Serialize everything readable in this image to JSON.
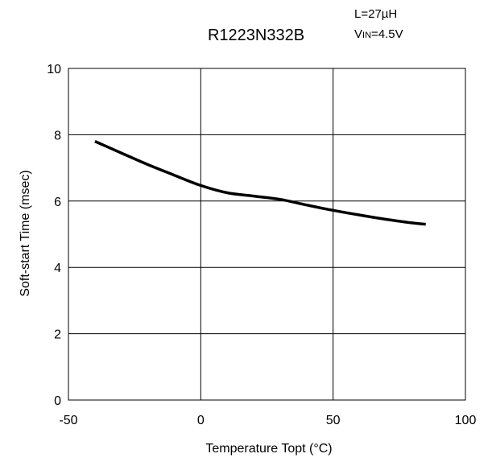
{
  "chart_data": {
    "type": "line",
    "title": "R1223N332B",
    "conditions": {
      "line1": "L=27µH",
      "line2_prefix": "V",
      "line2_sub": "IN",
      "line2_suffix": "=4.5V"
    },
    "xlabel": "Temperature Topt (°C)",
    "ylabel": "Soft-start Time (msec)",
    "xlim": [
      -50,
      100
    ],
    "ylim": [
      0,
      10
    ],
    "x_ticks": [
      -50,
      0,
      50,
      100
    ],
    "y_ticks": [
      0,
      2,
      4,
      6,
      8,
      10
    ],
    "x_tick_labels": [
      "-50",
      "0",
      "50",
      "100"
    ],
    "y_tick_labels": [
      "0",
      "2",
      "4",
      "6",
      "8",
      "10"
    ],
    "grid": true,
    "series": [
      {
        "x": [
          -40,
          -30,
          -20,
          -10,
          0,
          10,
          20,
          30,
          40,
          50,
          60,
          70,
          80,
          85
        ],
        "y": [
          7.8,
          7.45,
          7.1,
          6.78,
          6.47,
          6.25,
          6.15,
          6.05,
          5.88,
          5.72,
          5.58,
          5.45,
          5.34,
          5.3
        ]
      }
    ],
    "colors": {
      "line": "#000000",
      "grid": "#000000",
      "background": "#ffffff"
    }
  }
}
